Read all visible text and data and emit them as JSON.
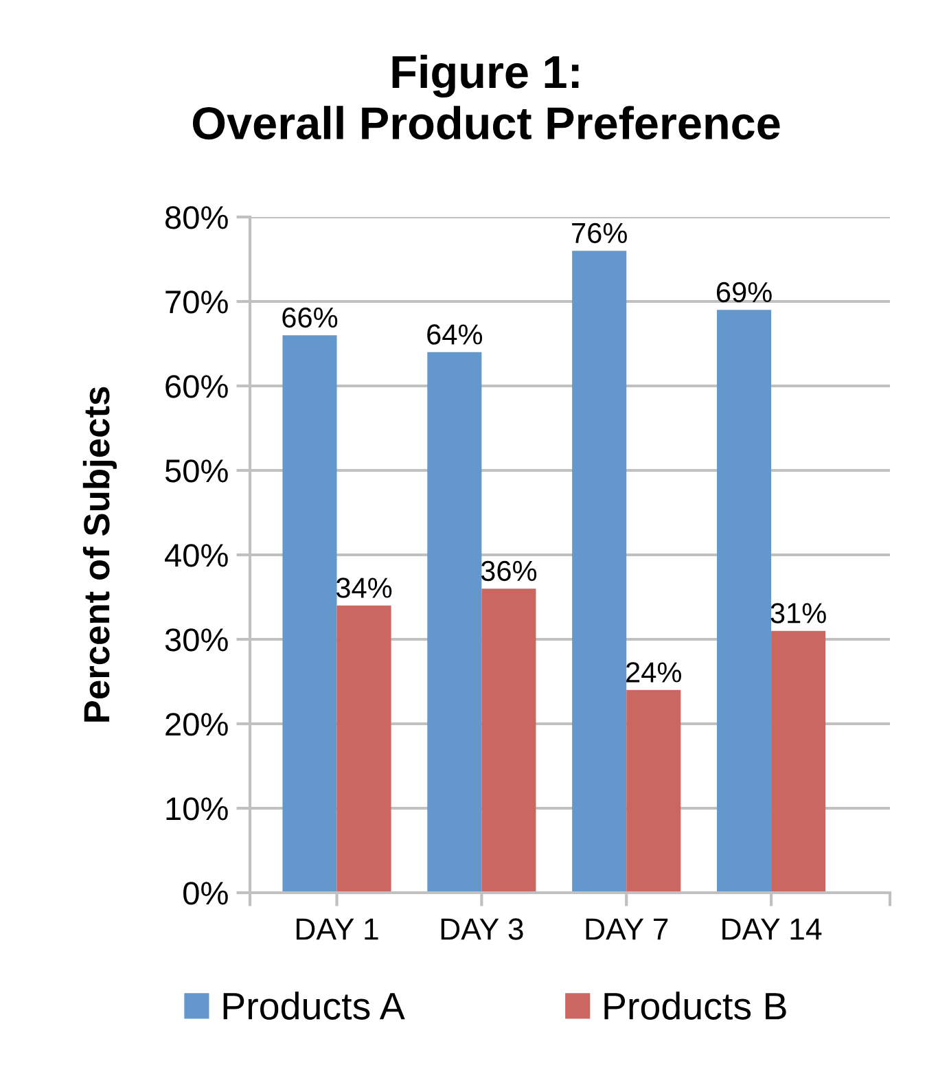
{
  "chart_data": {
    "type": "bar",
    "title": "Figure 1:\nOverall Product Preference",
    "ylabel": "Percent of Subjects",
    "categories": [
      "DAY 1",
      "DAY 3",
      "DAY 7",
      "DAY 14"
    ],
    "series": [
      {
        "name": "Products A",
        "color": "#6497cc",
        "values": [
          66,
          64,
          76,
          69
        ],
        "value_labels": [
          "66%",
          "64%",
          "76%",
          "69%"
        ]
      },
      {
        "name": "Products B",
        "color": "#cc6660",
        "values": [
          34,
          36,
          24,
          31
        ],
        "value_labels": [
          "34%",
          "36%",
          "24%",
          "31%"
        ]
      }
    ],
    "ylim": [
      0,
      80
    ],
    "yticks": [
      {
        "value": 0,
        "label": "0%"
      },
      {
        "value": 10,
        "label": "10%"
      },
      {
        "value": 20,
        "label": "20%"
      },
      {
        "value": 30,
        "label": "30%"
      },
      {
        "value": 40,
        "label": "40%"
      },
      {
        "value": 50,
        "label": "50%"
      },
      {
        "value": 60,
        "label": "60%"
      },
      {
        "value": 70,
        "label": "70%"
      },
      {
        "value": 80,
        "label": "80%"
      }
    ],
    "grid": "y",
    "legend": "bottom"
  }
}
